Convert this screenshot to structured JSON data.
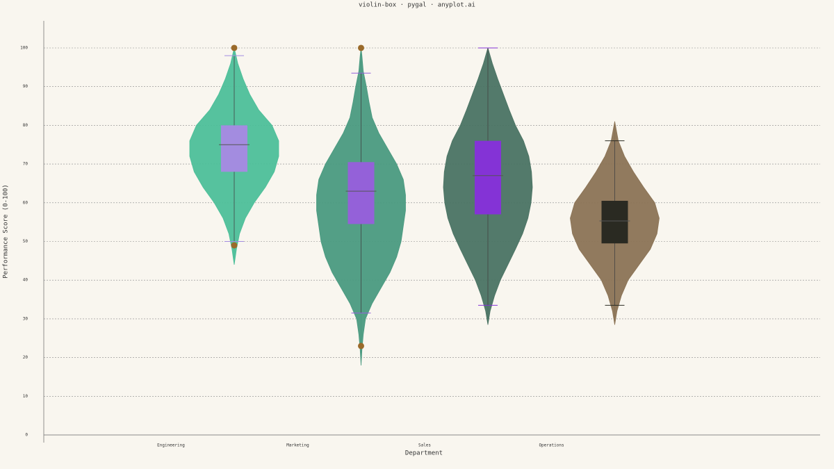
{
  "chart_data": {
    "type": "violin-box",
    "title": "violin-box · pygal · anyplot.ai",
    "x_label": "Department",
    "y_label": "Performance Score (0-100)",
    "categories": [
      "Engineering",
      "Marketing",
      "Sales",
      "Operations"
    ],
    "ylim": [
      0,
      107
    ],
    "yticks": [
      0,
      10,
      20,
      30,
      40,
      50,
      60,
      70,
      80,
      90,
      100
    ],
    "grid": true,
    "series": [
      {
        "name": "Engineering",
        "color": "#4dbf99",
        "box_color": "#a38ce0",
        "whisker_low": 50,
        "q1": 68,
        "median": 75,
        "q3": 80,
        "whisker_high": 98,
        "outliers": [
          100,
          49
        ],
        "violin": {
          "y": [
            44,
            48,
            52,
            56,
            60,
            64,
            68,
            72,
            76,
            80,
            84,
            88,
            92,
            96,
            100
          ],
          "width": [
            0,
            0.05,
            0.12,
            0.25,
            0.45,
            0.7,
            0.9,
            1,
            1,
            0.85,
            0.55,
            0.35,
            0.2,
            0.08,
            0
          ]
        }
      },
      {
        "name": "Marketing",
        "color": "#4a9a80",
        "box_color": "#9461d9",
        "whisker_low": 31.5,
        "q1": 54.5,
        "median": 63,
        "q3": 70.5,
        "whisker_high": 93.5,
        "outliers": [
          100,
          23
        ],
        "violin": {
          "y": [
            18,
            22,
            26,
            30,
            34,
            38,
            42,
            46,
            50,
            54,
            58,
            62,
            66,
            70,
            74,
            78,
            82,
            86,
            90,
            94,
            98,
            100
          ],
          "width": [
            0,
            0.02,
            0.05,
            0.1,
            0.25,
            0.45,
            0.65,
            0.8,
            0.9,
            0.95,
            1,
            1,
            0.95,
            0.8,
            0.6,
            0.4,
            0.25,
            0.18,
            0.12,
            0.05,
            0.02,
            0
          ]
        }
      },
      {
        "name": "Sales",
        "color": "#4a7363",
        "box_color": "#8433d6",
        "whisker_low": 33.5,
        "q1": 57,
        "median": 67,
        "q3": 76,
        "whisker_high": 100,
        "outliers": [],
        "violin": {
          "y": [
            28.5,
            32,
            36,
            40,
            44,
            48,
            52,
            56,
            60,
            64,
            68,
            72,
            76,
            80,
            84,
            88,
            92,
            96,
            100
          ],
          "width": [
            0,
            0.05,
            0.15,
            0.28,
            0.45,
            0.62,
            0.78,
            0.9,
            0.97,
            1,
            0.98,
            0.92,
            0.8,
            0.62,
            0.48,
            0.35,
            0.22,
            0.1,
            0
          ]
        }
      },
      {
        "name": "Operations",
        "color": "#8b7355",
        "box_color": "#2a2a22",
        "whisker_low": 33.5,
        "q1": 49.5,
        "median": 55.3,
        "q3": 60.5,
        "whisker_high": 76,
        "outliers": [],
        "violin": {
          "y": [
            28.5,
            32,
            36,
            40,
            44,
            48,
            52,
            56,
            60,
            64,
            68,
            72,
            76,
            81
          ],
          "width": [
            0,
            0.05,
            0.15,
            0.3,
            0.55,
            0.8,
            0.95,
            1,
            0.9,
            0.65,
            0.42,
            0.22,
            0.08,
            0
          ]
        }
      }
    ]
  }
}
